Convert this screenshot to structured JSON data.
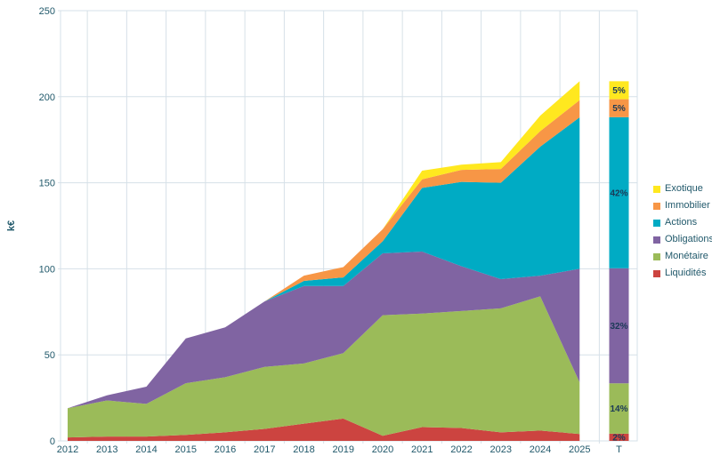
{
  "chart_data": {
    "type": "area",
    "stacked": true,
    "title": "",
    "ylabel": "k€",
    "xlabel": "",
    "ylim": [
      0,
      250
    ],
    "ytick_step": 50,
    "ytick_labels": [
      "0",
      "50",
      "100",
      "150",
      "200",
      "250"
    ],
    "grid": true,
    "legend_position": "right",
    "categories": [
      "2012",
      "2013",
      "2014",
      "2015",
      "2016",
      "2017",
      "2018",
      "2019",
      "2020",
      "2021",
      "2022",
      "2023",
      "2024",
      "2025"
    ],
    "total_column_label": "T",
    "series": [
      {
        "name": "Liquidités",
        "color": "#CC4440",
        "total_pct": "2%",
        "values": [
          2,
          2.5,
          2.5,
          3.5,
          5,
          7,
          10,
          13,
          3,
          8,
          7.5,
          5,
          6,
          4
        ]
      },
      {
        "name": "Monétaire",
        "color": "#9BBB59",
        "total_pct": "14%",
        "values": [
          17,
          21,
          19,
          30,
          32,
          36,
          35,
          38,
          70,
          66,
          68,
          72,
          78,
          30
        ]
      },
      {
        "name": "Obligations",
        "color": "#8064A2",
        "total_pct": "32%",
        "values": [
          0,
          3,
          10,
          26,
          29,
          38,
          45,
          39,
          36,
          36,
          26,
          17,
          12,
          66
        ]
      },
      {
        "name": "Actions",
        "color": "#00ABC4",
        "total_pct": "42%",
        "values": [
          0,
          0,
          0,
          0,
          0,
          0,
          3,
          5,
          7,
          37,
          49,
          56,
          75,
          88
        ]
      },
      {
        "name": "Immobilier",
        "color": "#F79646",
        "total_pct": "5%",
        "values": [
          0,
          0,
          0,
          0,
          0,
          0,
          3,
          6,
          7,
          5,
          7,
          8,
          9,
          10
        ]
      },
      {
        "name": "Exotique",
        "color": "#FFE81F",
        "total_pct": "5%",
        "values": [
          0,
          0,
          0,
          0,
          0,
          0,
          0,
          0,
          0,
          5,
          3,
          4,
          9,
          11
        ]
      }
    ],
    "legend": [
      {
        "label": "Exotique",
        "color": "#FFE81F"
      },
      {
        "label": "Immobilier",
        "color": "#F79646"
      },
      {
        "label": "Actions",
        "color": "#00ABC4"
      },
      {
        "label": "Obligations",
        "color": "#8064A2"
      },
      {
        "label": "Monétaire",
        "color": "#9BBB59"
      },
      {
        "label": "Liquidités",
        "color": "#CC4440"
      }
    ]
  },
  "colors": {
    "grid": "#D6E0E8",
    "axis_text": "#21596B",
    "pct_text": "#1B3A57",
    "background": "#FFFFFF"
  }
}
